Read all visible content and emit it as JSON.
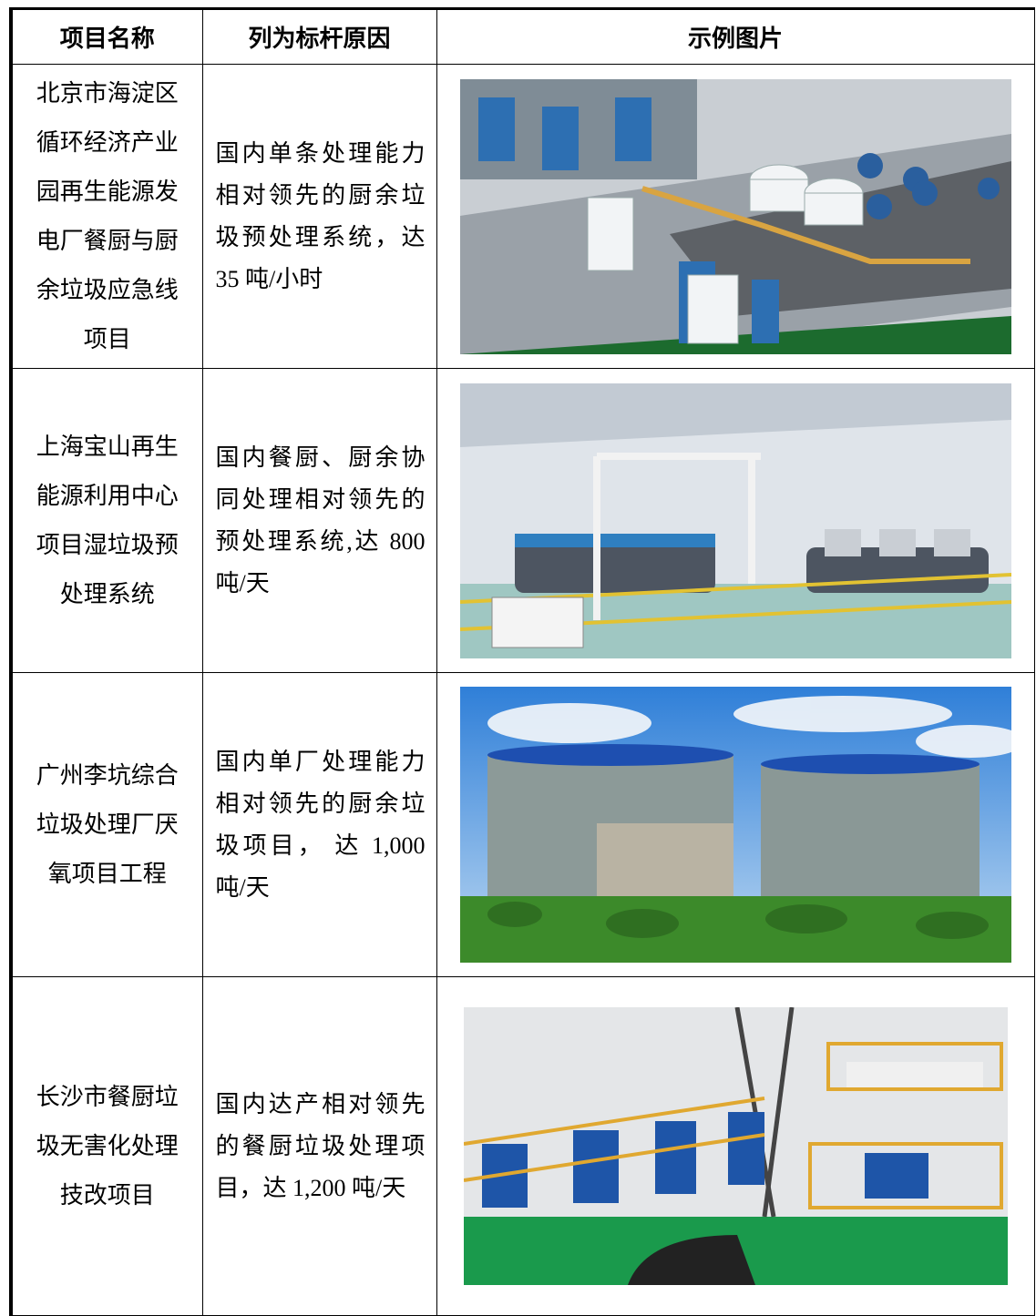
{
  "header": {
    "columns": [
      "项目名称",
      "列为标杆原因",
      "示例图片"
    ]
  },
  "rows": [
    {
      "name": "北京市海淀区循环经济产业园再生能源发电厂餐厨与厨余垃圾应急线项目",
      "reason": "国内单条处理能力相对领先的厨余垃圾预处理系统，达35 吨/小时"
    },
    {
      "name": "上海宝山再生能源利用中心项目湿垃圾预处理系统",
      "reason": "国内餐厨、厨余协同处理相对领先的预处理系统,达 800 吨/天"
    },
    {
      "name": "广州李坑综合垃圾处理厂厌氧项目工程",
      "reason": "国内单厂处理能力相对领先的厨余垃圾项目， 达 1,000 吨/天"
    },
    {
      "name": "长沙市餐厨垃圾无害化处理技改项目",
      "reason": "国内达产相对领先的餐厨垃圾处理项目，达 1,200 吨/天"
    }
  ]
}
